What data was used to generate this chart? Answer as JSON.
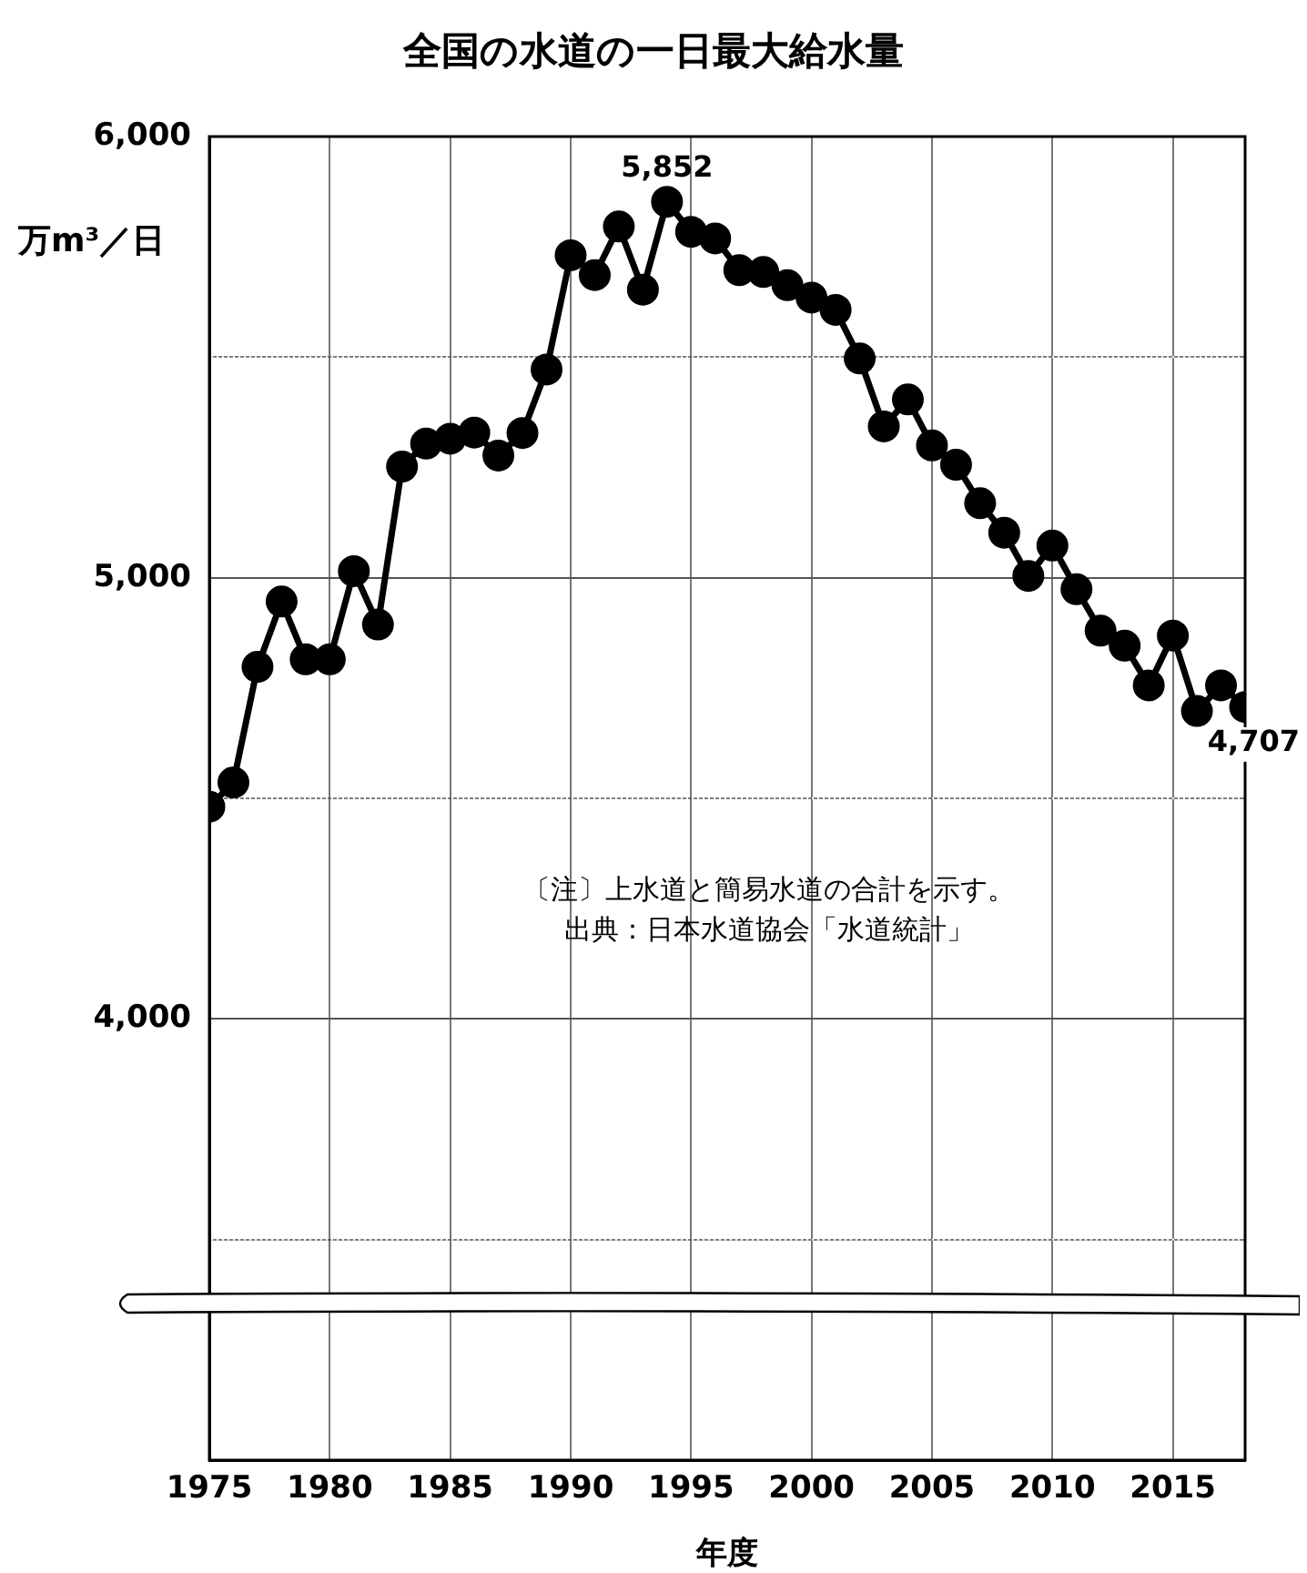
{
  "chart_data": {
    "type": "line",
    "title": "全国の水道の一日最大給水量",
    "xlabel": "年度",
    "ylabel": "万m³／日",
    "x": [
      1975,
      1976,
      1977,
      1978,
      1979,
      1980,
      1981,
      1982,
      1983,
      1984,
      1985,
      1986,
      1987,
      1988,
      1989,
      1990,
      1991,
      1992,
      1993,
      1994,
      1995,
      1996,
      1997,
      1998,
      1999,
      2000,
      2001,
      2002,
      2003,
      2004,
      2005,
      2006,
      2007,
      2008,
      2009,
      2010,
      2011,
      2012,
      2013,
      2014,
      2015,
      2016,
      2017,
      2018
    ],
    "series": [
      {
        "color": "#000000",
        "values": [
          4481,
          4536,
          4798,
          4946,
          4815,
          4815,
          5015,
          4894,
          5252,
          5304,
          5315,
          5329,
          5277,
          5328,
          5472,
          5731,
          5686,
          5796,
          5653,
          5852,
          5784,
          5769,
          5697,
          5693,
          5663,
          5635,
          5607,
          5497,
          5343,
          5404,
          5300,
          5256,
          5169,
          5102,
          5004,
          5073,
          4974,
          4880,
          4846,
          4756,
          4869,
          4698,
          4756,
          4707
        ],
        "value_labels": [
          null,
          null,
          null,
          null,
          null,
          null,
          null,
          null,
          null,
          null,
          null,
          null,
          null,
          null,
          null,
          null,
          null,
          null,
          null,
          "5,852",
          null,
          null,
          null,
          null,
          null,
          null,
          null,
          null,
          null,
          null,
          null,
          null,
          null,
          null,
          null,
          null,
          null,
          null,
          null,
          null,
          null,
          null,
          null,
          "4,707"
        ]
      }
    ],
    "xlim": [
      1975,
      2018
    ],
    "xticks": [
      1975,
      1980,
      1985,
      1990,
      1995,
      2000,
      2005,
      2010,
      2015
    ],
    "ylim": [
      3000,
      6000
    ],
    "yticks": [
      {
        "value": 3500,
        "label": null
      },
      {
        "value": 4000,
        "label": "4,000"
      },
      {
        "value": 4500,
        "label": null
      },
      {
        "value": 5000,
        "label": "5,000"
      },
      {
        "value": 5500,
        "label": null
      },
      {
        "value": 6000,
        "label": "6,000"
      }
    ],
    "grid": true,
    "legend": false,
    "marker": "circle",
    "line_style": "solid",
    "annotations": [
      "〔注〕上水道と簡易水道の合計を示す。",
      "出典：日本水道協会「水道統計」"
    ]
  }
}
